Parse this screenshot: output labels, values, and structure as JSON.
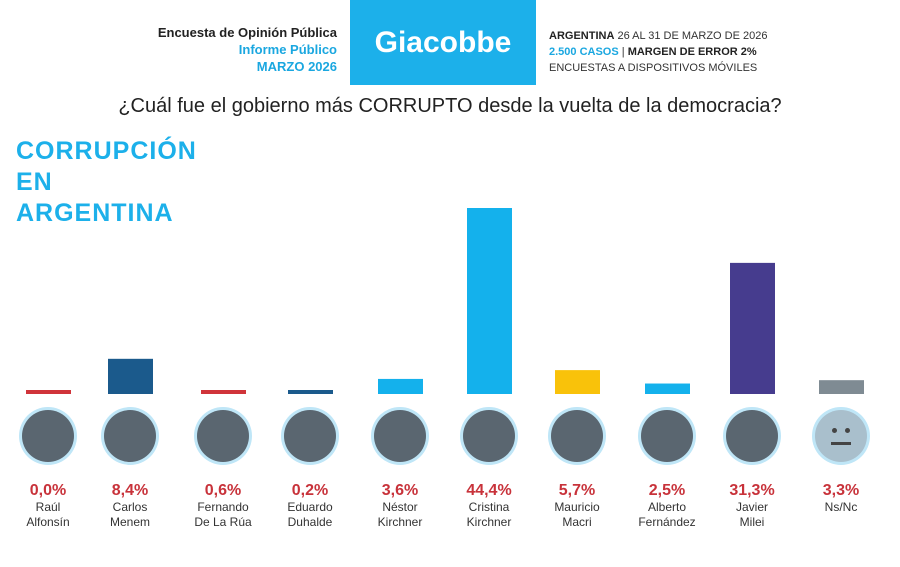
{
  "header": {
    "line1": "Encuesta de Opinión Pública",
    "line2": "Informe Público",
    "line3": "MARZO 2026",
    "logo": "Giacobbe",
    "country": "ARGENTINA",
    "dates": "26 AL 31 DE MARZO DE 2026",
    "cases": "2.500 CASOS",
    "sep": "|",
    "margin": "MARGEN DE ERROR 2%",
    "method": "ENCUESTAS A DISPOSITIVOS MÓVILES"
  },
  "chart_data": {
    "type": "bar",
    "title": "¿Cuál fue el gobierno más CORRUPTO desde la vuelta de la democracia?",
    "side_title": [
      "CORRUPCIÓN",
      "EN",
      "ARGENTINA"
    ],
    "categories": [
      [
        "Raúl",
        "Alfonsín"
      ],
      [
        "Carlos",
        "Menem"
      ],
      [
        "Fernando",
        "De La Rúa"
      ],
      [
        "Eduardo",
        "Duhalde"
      ],
      [
        "Néstor",
        "Kirchner"
      ],
      [
        "Cristina",
        "Kirchner"
      ],
      [
        "Mauricio",
        "Macri"
      ],
      [
        "Alberto",
        "Fernández"
      ],
      [
        "Javier",
        "Milei"
      ],
      [
        "Ns/Nc",
        ""
      ]
    ],
    "values": [
      0.0,
      8.4,
      0.6,
      0.2,
      3.6,
      44.4,
      5.7,
      2.5,
      31.3,
      3.3
    ],
    "labels": [
      "0,0%",
      "8,4%",
      "0,6%",
      "0,2%",
      "3,6%",
      "44,4%",
      "5,7%",
      "2,5%",
      "31,3%",
      "3,3%"
    ],
    "colors": [
      "#d0343a",
      "#1b5a8c",
      "#d0343a",
      "#1b5a8c",
      "#14b1ec",
      "#14b1ec",
      "#f9c20a",
      "#14b1ec",
      "#463c8e",
      "#7f8b93"
    ],
    "grid": false,
    "unit": "%"
  }
}
